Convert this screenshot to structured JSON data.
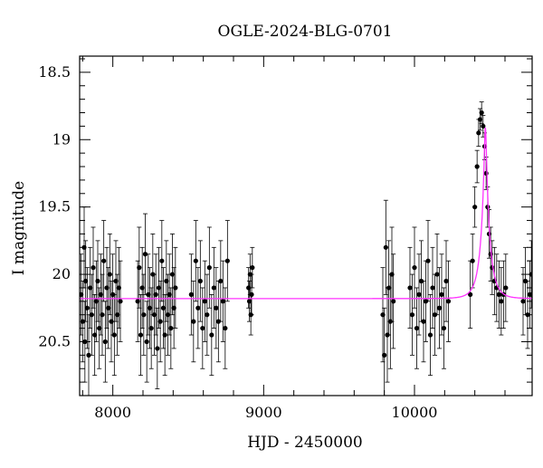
{
  "chart_data": {
    "type": "scatter",
    "title": "OGLE-2024-BLG-0701",
    "xlabel": "HJD - 2450000",
    "ylabel": "I magnitude",
    "xlim": [
      7780,
      10780
    ],
    "ylim": [
      20.9,
      18.38
    ],
    "y_inverted": true,
    "xticks": [
      8000,
      9000,
      10000
    ],
    "xtick_labels": [
      "8000",
      "9000",
      "10000"
    ],
    "yticks": [
      18.5,
      19,
      19.5,
      20,
      20.5
    ],
    "ytick_labels": [
      "18.5",
      "19",
      "19.5",
      "20",
      "20.5"
    ],
    "grid": false,
    "legend": "none",
    "baseline_mag": 20.18,
    "colors": {
      "points": "#000000",
      "model": "#ff33ff"
    },
    "series": [
      {
        "name": "observations",
        "style": "points-with-errorbars",
        "x": [
          7790,
          7800,
          7810,
          7815,
          7820,
          7830,
          7840,
          7850,
          7860,
          7870,
          7880,
          7890,
          7900,
          7910,
          7920,
          7930,
          7940,
          7950,
          7960,
          7970,
          7980,
          7990,
          8000,
          8010,
          8020,
          8030,
          8040,
          8050,
          8165,
          8175,
          8185,
          8195,
          8205,
          8215,
          8225,
          8235,
          8245,
          8255,
          8265,
          8275,
          8285,
          8295,
          8305,
          8315,
          8325,
          8335,
          8345,
          8355,
          8365,
          8375,
          8385,
          8395,
          8405,
          8415,
          8520,
          8535,
          8550,
          8565,
          8580,
          8595,
          8610,
          8625,
          8640,
          8655,
          8670,
          8685,
          8700,
          8715,
          8730,
          8745,
          8760,
          8900,
          8905,
          8910,
          8915,
          8920,
          8925,
          9790,
          9800,
          9810,
          9820,
          9830,
          9840,
          9850,
          9860,
          9970,
          9985,
          10000,
          10015,
          10030,
          10045,
          10060,
          10075,
          10090,
          10105,
          10120,
          10135,
          10150,
          10165,
          10180,
          10195,
          10210,
          10225,
          10370,
          10385,
          10400,
          10415,
          10425,
          10435,
          10445,
          10455,
          10465,
          10475,
          10485,
          10495,
          10505,
          10515,
          10530,
          10545,
          10560,
          10575,
          10590,
          10605,
          10720,
          10735,
          10750,
          10765,
          10775
        ],
        "y": [
          20.15,
          20.35,
          19.8,
          20.5,
          20.05,
          20.25,
          20.6,
          20.1,
          20.3,
          19.95,
          20.45,
          20.2,
          20.05,
          20.4,
          20.15,
          20.3,
          19.9,
          20.5,
          20.1,
          20.25,
          20.0,
          20.35,
          20.15,
          20.45,
          20.05,
          20.3,
          20.1,
          20.2,
          20.2,
          19.95,
          20.45,
          20.1,
          20.3,
          19.85,
          20.5,
          20.15,
          20.25,
          20.4,
          20.0,
          20.3,
          20.15,
          20.55,
          20.1,
          20.35,
          19.9,
          20.25,
          20.45,
          20.05,
          20.3,
          20.15,
          20.4,
          20.0,
          20.25,
          20.1,
          20.15,
          20.35,
          19.9,
          20.25,
          20.05,
          20.4,
          20.2,
          20.3,
          19.95,
          20.45,
          20.1,
          20.25,
          20.35,
          20.05,
          20.2,
          20.4,
          19.9,
          20.1,
          20.2,
          20.0,
          20.3,
          20.15,
          19.95,
          20.3,
          20.6,
          19.8,
          20.45,
          20.1,
          20.35,
          20.0,
          20.2,
          20.1,
          20.3,
          19.95,
          20.4,
          20.15,
          20.05,
          20.35,
          20.2,
          19.9,
          20.45,
          20.1,
          20.3,
          20.0,
          20.25,
          20.15,
          20.4,
          20.05,
          20.2,
          20.15,
          19.9,
          19.5,
          19.2,
          18.95,
          18.85,
          18.8,
          18.9,
          19.05,
          19.25,
          19.5,
          19.7,
          19.85,
          19.95,
          20.05,
          20.1,
          20.15,
          20.2,
          20.15,
          20.1,
          20.2,
          20.05,
          20.3,
          20.15,
          20.0
        ],
        "err": [
          0.3,
          0.3,
          0.3,
          0.3,
          0.3,
          0.3,
          0.3,
          0.3,
          0.3,
          0.3,
          0.3,
          0.3,
          0.3,
          0.3,
          0.3,
          0.3,
          0.3,
          0.3,
          0.3,
          0.3,
          0.3,
          0.3,
          0.3,
          0.3,
          0.3,
          0.3,
          0.3,
          0.3,
          0.3,
          0.3,
          0.3,
          0.3,
          0.3,
          0.3,
          0.3,
          0.3,
          0.3,
          0.3,
          0.3,
          0.3,
          0.3,
          0.3,
          0.3,
          0.3,
          0.3,
          0.3,
          0.3,
          0.3,
          0.3,
          0.3,
          0.3,
          0.3,
          0.3,
          0.3,
          0.3,
          0.3,
          0.3,
          0.3,
          0.3,
          0.3,
          0.3,
          0.3,
          0.3,
          0.3,
          0.3,
          0.3,
          0.3,
          0.3,
          0.3,
          0.3,
          0.3,
          0.15,
          0.15,
          0.15,
          0.15,
          0.15,
          0.15,
          0.35,
          0.35,
          0.35,
          0.35,
          0.35,
          0.35,
          0.35,
          0.35,
          0.3,
          0.3,
          0.3,
          0.3,
          0.3,
          0.3,
          0.3,
          0.3,
          0.3,
          0.3,
          0.3,
          0.3,
          0.3,
          0.3,
          0.3,
          0.3,
          0.3,
          0.3,
          0.25,
          0.2,
          0.15,
          0.12,
          0.1,
          0.08,
          0.08,
          0.08,
          0.1,
          0.12,
          0.15,
          0.18,
          0.2,
          0.2,
          0.25,
          0.25,
          0.25,
          0.25,
          0.25,
          0.25,
          0.25,
          0.25,
          0.25,
          0.25,
          0.25
        ]
      },
      {
        "name": "model",
        "style": "line",
        "type_hint": "paczynski",
        "t0": 10470,
        "tE": 60,
        "u0": 0.12,
        "baseline": 20.18,
        "peak_mag": 18.88
      }
    ]
  }
}
